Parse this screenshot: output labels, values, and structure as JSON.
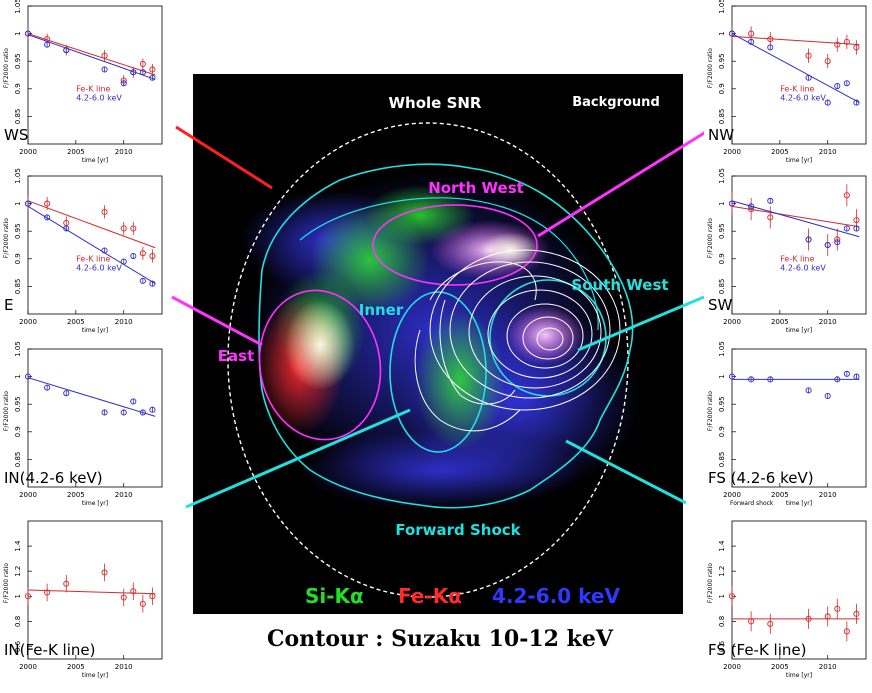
{
  "caption": "Contour : Suzaku 10-12 keV",
  "image": {
    "labels": {
      "whole": "Whole SNR",
      "background": "Background",
      "northwest": "North West",
      "southwest": "South West",
      "inner": "Inner",
      "east": "East",
      "forward": "Forward Shock"
    },
    "legend": [
      {
        "text": "Si-Kα",
        "color": "#22e022"
      },
      {
        "text": "Fe-Kα",
        "color": "#ff2a2a"
      },
      {
        "text": "4.2-6.0 keV",
        "color": "#2e38ff"
      }
    ],
    "colors": {
      "whole": "#ff2020",
      "magenta": "#ff33ff",
      "cyan": "#22e0e0"
    }
  },
  "chart_data": [
    {
      "type": "scatter",
      "id": "WS",
      "label": "WS",
      "xlabel": "time [yr]",
      "ylabel": "F/F2000 ratio",
      "xlim": [
        2000,
        2014
      ],
      "ylim": [
        0.8,
        1.05
      ],
      "xticks": [
        2000,
        2005,
        2010
      ],
      "xtick_labels": [
        "2000",
        "2005",
        "2010"
      ],
      "yticks": [
        0.85,
        0.9,
        0.95,
        1,
        1.05
      ],
      "ytick_labels": [
        "0.85",
        "0.9",
        "0.95",
        "1",
        "1.05"
      ],
      "legend": [
        "Fe-K line",
        "4.2-6.0 keV"
      ],
      "series": [
        {
          "name": "Fe-K line",
          "color": "#d42a2a",
          "x": [
            2000,
            2002,
            2004,
            2008,
            2010,
            2011,
            2012,
            2013
          ],
          "y": [
            1.0,
            0.99,
            0.97,
            0.96,
            0.915,
            0.93,
            0.945,
            0.935
          ],
          "err": 0.01,
          "fit": [
            [
              2000,
              1.0
            ],
            [
              2013.3,
              0.925
            ]
          ]
        },
        {
          "name": "4.2-6.0 keV",
          "color": "#3030c8",
          "x": [
            2000,
            2002,
            2004,
            2008,
            2010,
            2011,
            2012,
            2013
          ],
          "y": [
            1.0,
            0.98,
            0.97,
            0.935,
            0.91,
            0.93,
            0.93,
            0.92
          ],
          "err": 0.005,
          "fit": [
            [
              2000,
              0.998
            ],
            [
              2013.3,
              0.917
            ]
          ]
        }
      ]
    },
    {
      "type": "scatter",
      "id": "E",
      "label": "E",
      "xlabel": "time [yr]",
      "ylabel": "F/F2000 ratio",
      "xlim": [
        2000,
        2014
      ],
      "ylim": [
        0.8,
        1.05
      ],
      "xticks": [
        2000,
        2005,
        2010
      ],
      "xtick_labels": [
        "2000",
        "2005",
        "2010"
      ],
      "yticks": [
        0.85,
        0.9,
        0.95,
        1,
        1.05
      ],
      "ytick_labels": [
        "0.85",
        "0.9",
        "0.95",
        "1",
        "1.05"
      ],
      "legend": [
        "Fe-K line",
        "4.2-6.0 keV"
      ],
      "series": [
        {
          "name": "Fe-K line",
          "color": "#d42a2a",
          "x": [
            2000,
            2002,
            2004,
            2008,
            2010,
            2011,
            2012,
            2013
          ],
          "y": [
            1.0,
            1.0,
            0.965,
            0.985,
            0.955,
            0.955,
            0.91,
            0.905
          ],
          "err": 0.012,
          "fit": [
            [
              2000,
              1.005
            ],
            [
              2013.3,
              0.92
            ]
          ]
        },
        {
          "name": "4.2-6.0 keV",
          "color": "#3030c8",
          "x": [
            2000,
            2002,
            2004,
            2008,
            2010,
            2011,
            2012,
            2013
          ],
          "y": [
            1.0,
            0.975,
            0.955,
            0.915,
            0.895,
            0.905,
            0.86,
            0.855
          ],
          "err": 0.005,
          "fit": [
            [
              2000,
              0.995
            ],
            [
              2013.3,
              0.855
            ]
          ]
        }
      ]
    },
    {
      "type": "scatter",
      "id": "IN1",
      "label": "IN(4.2-6 keV)",
      "xlabel": "time [yr]",
      "ylabel": "F/F2000 ratio",
      "xlim": [
        2000,
        2014
      ],
      "ylim": [
        0.8,
        1.05
      ],
      "xticks": [
        2000,
        2005,
        2010
      ],
      "xtick_labels": [
        "2000",
        "2005",
        "2010"
      ],
      "yticks": [
        0.85,
        0.9,
        0.95,
        1,
        1.05
      ],
      "ytick_labels": [
        "0.85",
        "0.9",
        "0.95",
        "1",
        "1.05"
      ],
      "legend": [],
      "series": [
        {
          "name": "4.2-6.0 keV",
          "color": "#3030c8",
          "x": [
            2000,
            2002,
            2004,
            2008,
            2010,
            2011,
            2012,
            2013
          ],
          "y": [
            1.0,
            0.98,
            0.97,
            0.935,
            0.935,
            0.955,
            0.935,
            0.94
          ],
          "err": 0.005,
          "fit": [
            [
              2000,
              0.998
            ],
            [
              2013.3,
              0.928
            ]
          ]
        }
      ]
    },
    {
      "type": "scatter",
      "id": "IN2",
      "label": "IN(Fe-K line)",
      "xlabel": "time [yr]",
      "ylabel": "F/F2000 ratio",
      "xlim": [
        2000,
        2014
      ],
      "ylim": [
        0.5,
        1.6
      ],
      "xticks": [
        2000,
        2005,
        2010
      ],
      "xtick_labels": [
        "2000",
        "2005",
        "2010"
      ],
      "yticks": [
        0.6,
        0.8,
        1,
        1.2,
        1.4
      ],
      "ytick_labels": [
        "0.6",
        "0.8",
        "1",
        "1.2",
        "1.4"
      ],
      "legend": [],
      "series": [
        {
          "name": "Fe-K line",
          "color": "#d42a2a",
          "x": [
            2000,
            2002,
            2004,
            2008,
            2010,
            2011,
            2012,
            2013
          ],
          "y": [
            1.0,
            1.03,
            1.1,
            1.19,
            0.99,
            1.04,
            0.94,
            1.0
          ],
          "err": 0.07,
          "fit": [
            [
              2000,
              1.05
            ],
            [
              2013.3,
              1.02
            ]
          ]
        }
      ]
    },
    {
      "type": "scatter",
      "id": "NW",
      "label": "NW",
      "xlabel": "time [yr]",
      "ylabel": "F/F2000 ratio",
      "xlim": [
        2000,
        2014
      ],
      "ylim": [
        0.8,
        1.05
      ],
      "xticks": [
        2000,
        2005,
        2010
      ],
      "xtick_labels": [
        "2000",
        "2005",
        "2010"
      ],
      "yticks": [
        0.85,
        0.9,
        0.95,
        1,
        1.05
      ],
      "ytick_labels": [
        "0.85",
        "0.9",
        "0.95",
        "1",
        "1.05"
      ],
      "legend": [
        "Fe-K line",
        "4.2-6.0 keV"
      ],
      "series": [
        {
          "name": "Fe-K line",
          "color": "#d42a2a",
          "x": [
            2000,
            2002,
            2004,
            2008,
            2010,
            2011,
            2012,
            2013
          ],
          "y": [
            1.0,
            1.0,
            0.99,
            0.96,
            0.95,
            0.98,
            0.985,
            0.975
          ],
          "err": 0.013,
          "fit": [
            [
              2000,
              0.995
            ],
            [
              2013.3,
              0.98
            ]
          ]
        },
        {
          "name": "4.2-6.0 keV",
          "color": "#3030c8",
          "x": [
            2000,
            2002,
            2004,
            2008,
            2010,
            2011,
            2012,
            2013
          ],
          "y": [
            1.0,
            0.985,
            0.975,
            0.92,
            0.875,
            0.905,
            0.91,
            0.875
          ],
          "err": 0.005,
          "fit": [
            [
              2000,
              1.0
            ],
            [
              2013.3,
              0.875
            ]
          ]
        }
      ]
    },
    {
      "type": "scatter",
      "id": "SW",
      "label": "SW",
      "xlabel": "time [yr]",
      "ylabel": "F/F2000 ratio",
      "xlim": [
        2000,
        2014
      ],
      "ylim": [
        0.8,
        1.05
      ],
      "xticks": [
        2000,
        2005,
        2010
      ],
      "xtick_labels": [
        "2000",
        "2005",
        "2010"
      ],
      "yticks": [
        0.85,
        0.9,
        0.95,
        1,
        1.05
      ],
      "ytick_labels": [
        "0.85",
        "0.9",
        "0.95",
        "1",
        "1.05"
      ],
      "legend": [
        "Fe-K line",
        "4.2-6.0 keV"
      ],
      "series": [
        {
          "name": "Fe-K line",
          "color": "#d42a2a",
          "x": [
            2000,
            2002,
            2004,
            2008,
            2010,
            2011,
            2012,
            2013
          ],
          "y": [
            1.0,
            0.99,
            0.975,
            0.935,
            0.925,
            0.935,
            1.015,
            0.97
          ],
          "err": 0.02,
          "fit": [
            [
              2000,
              0.995
            ],
            [
              2013.3,
              0.958
            ]
          ]
        },
        {
          "name": "4.2-6.0 keV",
          "color": "#3030c8",
          "x": [
            2000,
            2002,
            2004,
            2008,
            2010,
            2011,
            2012,
            2013
          ],
          "y": [
            1.0,
            0.995,
            1.005,
            0.935,
            0.925,
            0.93,
            0.955,
            0.955
          ],
          "err": 0.005,
          "fit": [
            [
              2000,
              1.005
            ],
            [
              2013.3,
              0.94
            ]
          ]
        }
      ]
    },
    {
      "type": "scatter",
      "id": "FS1",
      "label": "FS (4.2-6 keV)",
      "xlabel": "time [yr]",
      "ylabel": "F/F2000 ratio",
      "xlim": [
        2000,
        2014
      ],
      "ylim": [
        0.8,
        1.05
      ],
      "xticks": [
        2000,
        2005,
        2010
      ],
      "xtick_labels": [
        "2000",
        "2005",
        "2010"
      ],
      "yticks": [
        0.85,
        0.9,
        0.95,
        1,
        1.05
      ],
      "ytick_labels": [
        "0.85",
        "0.9",
        "0.95",
        "1",
        "1.05"
      ],
      "legend": [],
      "extra_text": "Forward shock",
      "series": [
        {
          "name": "4.2-6.0 keV",
          "color": "#3030c8",
          "x": [
            2000,
            2002,
            2004,
            2008,
            2010,
            2011,
            2012,
            2013
          ],
          "y": [
            1.0,
            0.995,
            0.995,
            0.975,
            0.965,
            0.995,
            1.005,
            1.0
          ],
          "err": 0.005,
          "fit": [
            [
              2000,
              0.995
            ],
            [
              2013.3,
              0.995
            ]
          ]
        }
      ]
    },
    {
      "type": "scatter",
      "id": "FS2",
      "label": "FS (Fe-K line)",
      "xlabel": "time [yr]",
      "ylabel": "F/F2000 ratio",
      "xlim": [
        2000,
        2014
      ],
      "ylim": [
        0.5,
        1.6
      ],
      "xticks": [
        2000,
        2005,
        2010
      ],
      "xtick_labels": [
        "2000",
        "2005",
        "2010"
      ],
      "yticks": [
        0.6,
        0.8,
        1,
        1.2,
        1.4
      ],
      "ytick_labels": [
        "0.6",
        "0.8",
        "1",
        "1.2",
        "1.4"
      ],
      "legend": [],
      "series": [
        {
          "name": "Fe-K line",
          "color": "#d42a2a",
          "x": [
            2000,
            2002,
            2004,
            2008,
            2010,
            2011,
            2012,
            2013
          ],
          "y": [
            1.0,
            0.8,
            0.78,
            0.82,
            0.84,
            0.9,
            0.72,
            0.86
          ],
          "err": 0.08,
          "fit": [
            [
              2000,
              0.82
            ],
            [
              2013.3,
              0.82
            ]
          ]
        }
      ]
    }
  ]
}
